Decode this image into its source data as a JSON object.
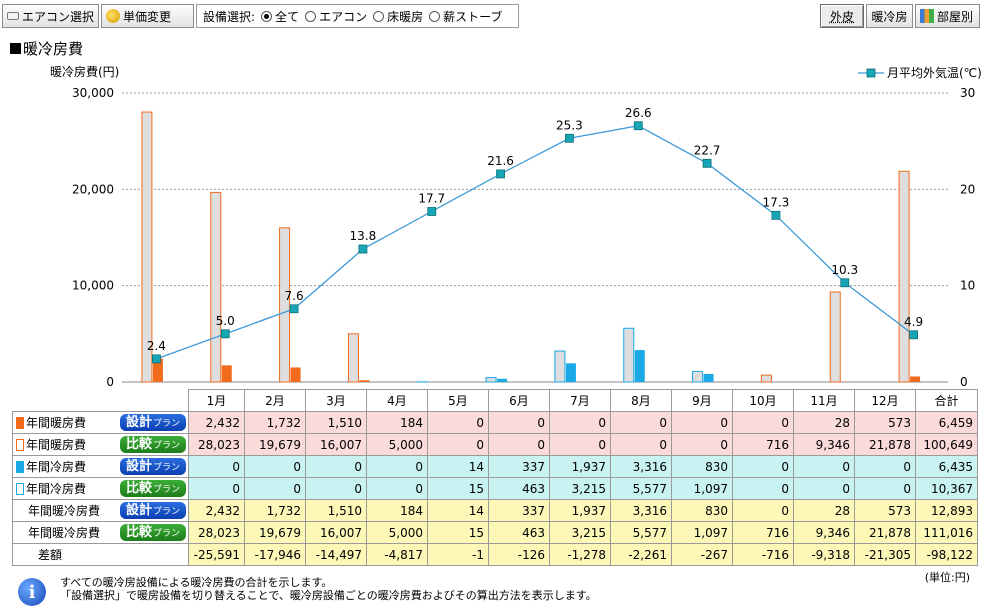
{
  "toolbar": {
    "ac_select_label": "エアコン選択",
    "price_change_label": "単価変更",
    "equip_select_label": "設備選択:",
    "radio_options": [
      "全て",
      "エアコン",
      "床暖房",
      "薪ストーブ"
    ],
    "radio_selected": "全て",
    "right_buttons": [
      "外皮",
      "暖冷房",
      "部屋別"
    ],
    "right_pressed": "外皮"
  },
  "section_title": "暖冷房費",
  "chart_data": {
    "type": "bar+line",
    "categories": [
      "1月",
      "2月",
      "3月",
      "4月",
      "5月",
      "6月",
      "7月",
      "8月",
      "9月",
      "10月",
      "11月",
      "12月"
    ],
    "ylabel_left": "暖冷房費(円)",
    "ylim_left": [
      0,
      30000
    ],
    "yticks_left": [
      "0",
      "10,000",
      "20,000",
      "30,000"
    ],
    "ylim_right": [
      0,
      30
    ],
    "yticks_right": [
      "0",
      "10",
      "20",
      "30"
    ],
    "grid": true,
    "legend": {
      "position": "top-right",
      "label": "月平均外気温(℃)"
    },
    "series": [
      {
        "name": "年間暖房費 比較プラン",
        "values": [
          28023,
          19679,
          16007,
          5000,
          0,
          0,
          0,
          0,
          0,
          716,
          9346,
          21878
        ]
      },
      {
        "name": "年間暖房費 設計プラン",
        "values": [
          2432,
          1732,
          1510,
          184,
          0,
          0,
          0,
          0,
          0,
          0,
          28,
          573
        ]
      },
      {
        "name": "年間冷房費 比較プラン",
        "values": [
          0,
          0,
          0,
          0,
          15,
          463,
          3215,
          5577,
          1097,
          0,
          0,
          0
        ]
      },
      {
        "name": "年間冷房費 設計プラン",
        "values": [
          0,
          0,
          0,
          0,
          14,
          337,
          1937,
          3316,
          830,
          0,
          0,
          0
        ]
      },
      {
        "name": "月平均外気温(℃)",
        "values": [
          2.4,
          5.0,
          7.6,
          13.8,
          17.7,
          21.6,
          25.3,
          26.6,
          22.7,
          17.3,
          10.3,
          4.9
        ]
      }
    ],
    "temp_labels": [
      "2.4",
      "5.0",
      "7.6",
      "13.8",
      "17.7",
      "21.6",
      "25.3",
      "26.6",
      "22.7",
      "17.3",
      "10.3",
      "4.9"
    ],
    "colors": {
      "heat_design": "#f26b1d",
      "heat_compare_border": "#f26b1d",
      "cool_design": "#1aa8e6",
      "cool_compare_fill": "#dadada",
      "cool_compare_border": "#1aa8e6",
      "temp_line": "#3f9ad8",
      "temp_marker": "#17a6b5"
    }
  },
  "table": {
    "headers": [
      "1月",
      "2月",
      "3月",
      "4月",
      "5月",
      "6月",
      "7月",
      "8月",
      "9月",
      "10月",
      "11月",
      "12月",
      "合計"
    ],
    "rows": [
      {
        "label": "年間暖房費",
        "badge": "設計",
        "suffix": "プラン",
        "kind": "heat",
        "marker": "hs",
        "values": [
          "2,432",
          "1,732",
          "1,510",
          "184",
          "0",
          "0",
          "0",
          "0",
          "0",
          "0",
          "28",
          "573",
          "6,459"
        ]
      },
      {
        "label": "年間暖房費",
        "badge": "比較",
        "suffix": "プラン",
        "kind": "heat",
        "marker": "hc",
        "values": [
          "28,023",
          "19,679",
          "16,007",
          "5,000",
          "0",
          "0",
          "0",
          "0",
          "0",
          "716",
          "9,346",
          "21,878",
          "100,649"
        ]
      },
      {
        "label": "年間冷房費",
        "badge": "設計",
        "suffix": "プラン",
        "kind": "cool",
        "marker": "cs",
        "values": [
          "0",
          "0",
          "0",
          "0",
          "14",
          "337",
          "1,937",
          "3,316",
          "830",
          "0",
          "0",
          "0",
          "6,435"
        ]
      },
      {
        "label": "年間冷房費",
        "badge": "比較",
        "suffix": "プラン",
        "kind": "cool",
        "marker": "cc",
        "values": [
          "0",
          "0",
          "0",
          "0",
          "15",
          "463",
          "3,215",
          "5,577",
          "1,097",
          "0",
          "0",
          "0",
          "10,367"
        ]
      },
      {
        "label": "年間暖冷房費",
        "badge": "設計",
        "suffix": "プラン",
        "kind": "total",
        "marker": "",
        "values": [
          "2,432",
          "1,732",
          "1,510",
          "184",
          "14",
          "337",
          "1,937",
          "3,316",
          "830",
          "0",
          "28",
          "573",
          "12,893"
        ]
      },
      {
        "label": "年間暖冷房費",
        "badge": "比較",
        "suffix": "プラン",
        "kind": "total",
        "marker": "",
        "values": [
          "28,023",
          "19,679",
          "16,007",
          "5,000",
          "15",
          "463",
          "3,215",
          "5,577",
          "1,097",
          "716",
          "9,346",
          "21,878",
          "111,016"
        ]
      },
      {
        "label": "差額",
        "badge": "",
        "suffix": "",
        "kind": "diff",
        "marker": "",
        "values": [
          "-25,591",
          "-17,946",
          "-14,497",
          "-4,817",
          "-1",
          "-126",
          "-1,278",
          "-2,261",
          "-267",
          "-716",
          "-9,318",
          "-21,305",
          "-98,122"
        ]
      }
    ]
  },
  "footer": {
    "unit": "(単位:円)",
    "note_line1": "すべての暖冷房設備による暖冷房費の合計を示します。",
    "note_line2": "「設備選択」で暖房設備を切り替えることで、暖冷房設備ごとの暖冷房費およびその算出方法を表示します。"
  }
}
